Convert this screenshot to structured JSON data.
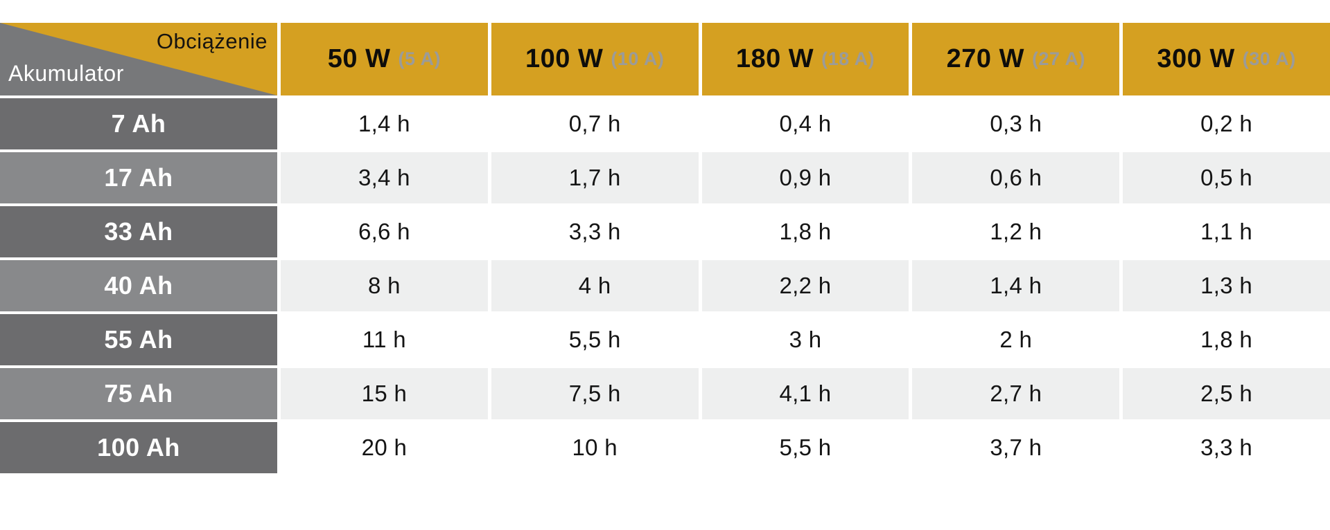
{
  "colors": {
    "gold": "#D5A021",
    "corner-gray": "#77787A",
    "row-label-dark": "#6C6C6E",
    "row-label-light": "#88898B",
    "data-row-light": "#EEEFEF",
    "header-sub-gray": "#9B9B99",
    "value-text": "#141414"
  },
  "table": {
    "corner": {
      "load_label": "Obciążenie",
      "battery_label": "Akumulator"
    },
    "columns": [
      {
        "power": "50 W",
        "amps": "(5 A)"
      },
      {
        "power": "100 W",
        "amps": "(10 A)"
      },
      {
        "power": "180 W",
        "amps": "(18 A)"
      },
      {
        "power": "270 W",
        "amps": "(27 A)"
      },
      {
        "power": "300 W",
        "amps": "(30 A)"
      }
    ],
    "rows": [
      {
        "label": "7 Ah",
        "values": [
          "1,4 h",
          "0,7 h",
          "0,4 h",
          "0,3 h",
          "0,2 h"
        ]
      },
      {
        "label": "17 Ah",
        "values": [
          "3,4 h",
          "1,7 h",
          "0,9 h",
          "0,6 h",
          "0,5 h"
        ]
      },
      {
        "label": "33 Ah",
        "values": [
          "6,6 h",
          "3,3 h",
          "1,8 h",
          "1,2 h",
          "1,1 h"
        ]
      },
      {
        "label": "40 Ah",
        "values": [
          "8 h",
          "4 h",
          "2,2 h",
          "1,4 h",
          "1,3 h"
        ]
      },
      {
        "label": "55 Ah",
        "values": [
          "11 h",
          "5,5 h",
          "3 h",
          "2 h",
          "1,8 h"
        ]
      },
      {
        "label": "75 Ah",
        "values": [
          "15 h",
          "7,5 h",
          "4,1 h",
          "2,7 h",
          "2,5 h"
        ]
      },
      {
        "label": "100 Ah",
        "values": [
          "20 h",
          "10 h",
          "5,5 h",
          "3,7 h",
          "3,3 h"
        ]
      }
    ]
  },
  "chart_data": {
    "type": "table",
    "title": "Battery runtime vs load (Akumulator / Obciążenie)",
    "corner_labels": {
      "top_right": "Obciążenie",
      "bottom_left": "Akumulator"
    },
    "column_headers": [
      "50 W (5 A)",
      "100 W (10 A)",
      "180 W (18 A)",
      "270 W (27 A)",
      "300 W (30 A)"
    ],
    "row_headers": [
      "7 Ah",
      "17 Ah",
      "33 Ah",
      "40 Ah",
      "55 Ah",
      "75 Ah",
      "100 Ah"
    ],
    "values_hours": [
      [
        1.4,
        0.7,
        0.4,
        0.3,
        0.2
      ],
      [
        3.4,
        1.7,
        0.9,
        0.6,
        0.5
      ],
      [
        6.6,
        3.3,
        1.8,
        1.2,
        1.1
      ],
      [
        8,
        4,
        2.2,
        1.4,
        1.3
      ],
      [
        11,
        5.5,
        3,
        2,
        1.8
      ],
      [
        15,
        7.5,
        4.1,
        2.7,
        2.5
      ],
      [
        20,
        10,
        5.5,
        3.7,
        3.3
      ]
    ],
    "units": {
      "columns": "W (A)",
      "rows": "Ah",
      "cells": "h"
    },
    "decimal_separator": ","
  }
}
